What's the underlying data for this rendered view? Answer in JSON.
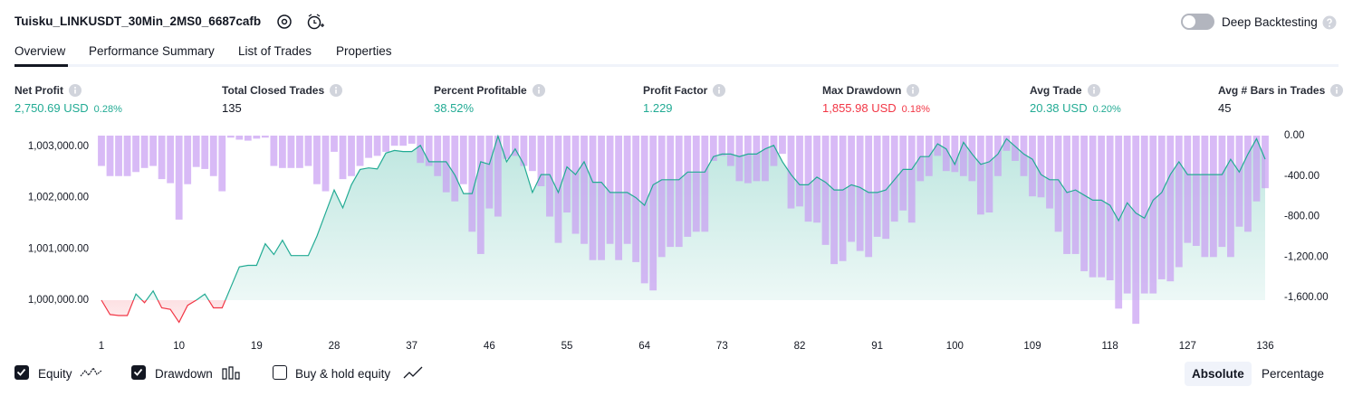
{
  "header": {
    "title": "Tuisku_LINKUSDT_30Min_2MS0_6687cafb",
    "deep_backtesting": "Deep Backtesting"
  },
  "tabs": [
    "Overview",
    "Performance Summary",
    "List of Trades",
    "Properties"
  ],
  "metrics": [
    {
      "label": "Net Profit",
      "value": "2,750.69 USD",
      "percent": "0.28%",
      "color": "#22ab94"
    },
    {
      "label": "Total Closed Trades",
      "value": "135",
      "color": "#131722"
    },
    {
      "label": "Percent Profitable",
      "value": "38.52%",
      "color": "#22ab94"
    },
    {
      "label": "Profit Factor",
      "value": "1.229",
      "color": "#22ab94"
    },
    {
      "label": "Max Drawdown",
      "value": "1,855.98 USD",
      "percent": "0.18%",
      "color": "#f23645"
    },
    {
      "label": "Avg Trade",
      "value": "20.38 USD",
      "percent": "0.20%",
      "color": "#22ab94"
    },
    {
      "label": "Avg # Bars in Trades",
      "value": "45",
      "color": "#131722"
    }
  ],
  "chart_data": {
    "type": "combo",
    "x": [
      1,
      2,
      3,
      4,
      5,
      6,
      7,
      8,
      9,
      10,
      11,
      12,
      13,
      14,
      15,
      16,
      17,
      18,
      19,
      20,
      21,
      22,
      23,
      24,
      25,
      26,
      27,
      28,
      29,
      30,
      31,
      32,
      33,
      34,
      35,
      36,
      37,
      38,
      39,
      40,
      41,
      42,
      43,
      44,
      45,
      46,
      47,
      48,
      49,
      50,
      51,
      52,
      53,
      54,
      55,
      56,
      57,
      58,
      59,
      60,
      61,
      62,
      63,
      64,
      65,
      66,
      67,
      68,
      69,
      70,
      71,
      72,
      73,
      74,
      75,
      76,
      77,
      78,
      79,
      80,
      81,
      82,
      83,
      84,
      85,
      86,
      87,
      88,
      89,
      90,
      91,
      92,
      93,
      94,
      95,
      96,
      97,
      98,
      99,
      100,
      101,
      102,
      103,
      104,
      105,
      106,
      107,
      108,
      109,
      110,
      111,
      112,
      113,
      114,
      115,
      116,
      117,
      118,
      119,
      120,
      121,
      122,
      123,
      124,
      125,
      126,
      127,
      128,
      129,
      130,
      131,
      132,
      133,
      134,
      135,
      136
    ],
    "xlim": [
      1,
      136
    ],
    "xticks": [
      1,
      10,
      19,
      28,
      37,
      46,
      55,
      64,
      73,
      82,
      91,
      100,
      109,
      118,
      127,
      136
    ],
    "ylim": [
      999330,
      1003210
    ],
    "yticks": [
      {
        "value": 1000000,
        "label": "1,000,000.00"
      },
      {
        "value": 1001000,
        "label": "1,001,000.00"
      },
      {
        "value": 1002000,
        "label": "1,002,000.00"
      },
      {
        "value": 1003000,
        "label": "1,003,000.00"
      }
    ],
    "y2lim": [
      -1966,
      0
    ],
    "y2ticks": [
      {
        "value": 0,
        "label": "0.00"
      },
      {
        "value": -400,
        "label": "-400.00"
      },
      {
        "value": -800,
        "label": "-800.00"
      },
      {
        "value": -1200,
        "label": "-1,200.00"
      },
      {
        "value": -1600,
        "label": "-1,600.00"
      }
    ],
    "baseline": 1000000,
    "series": [
      {
        "name": "Equity",
        "checked": true,
        "color": "#22ab94",
        "negative_color": "#f23645",
        "values": [
          1000000,
          999720,
          999700,
          999700,
          1000120,
          999950,
          1000180,
          999850,
          999820,
          999570,
          999900,
          1000000,
          1000120,
          999850,
          999850,
          1000250,
          1000650,
          1000680,
          1000680,
          1001100,
          1000890,
          1001170,
          1000870,
          1000870,
          1000870,
          1001250,
          1001700,
          1002150,
          1001800,
          1002250,
          1002550,
          1002580,
          1002560,
          1002870,
          1002920,
          1002900,
          1002900,
          1003020,
          1002700,
          1002700,
          1002700,
          1002440,
          1002080,
          1002080,
          1002700,
          1002650,
          1003200,
          1002700,
          1002950,
          1002650,
          1002100,
          1002450,
          1002450,
          1002100,
          1002600,
          1002450,
          1002700,
          1002300,
          1002300,
          1002100,
          1002100,
          1002100,
          1002000,
          1001850,
          1002250,
          1002350,
          1002350,
          1002350,
          1002500,
          1002500,
          1002500,
          1002800,
          1002850,
          1002850,
          1002800,
          1002850,
          1002850,
          1002950,
          1003020,
          1002700,
          1002450,
          1002250,
          1002250,
          1002400,
          1002300,
          1002150,
          1002150,
          1002250,
          1002200,
          1002100,
          1002100,
          1002150,
          1002350,
          1002550,
          1002550,
          1002800,
          1002800,
          1003050,
          1002950,
          1002650,
          1003080,
          1002850,
          1002650,
          1002700,
          1002850,
          1003150,
          1003000,
          1002850,
          1002750,
          1002450,
          1002350,
          1002350,
          1002100,
          1002150,
          1002050,
          1001950,
          1001950,
          1001850,
          1001550,
          1001900,
          1001700,
          1001600,
          1001950,
          1002100,
          1002450,
          1002700,
          1002450,
          1002450,
          1002450,
          1002450,
          1002450,
          1002750,
          1002500,
          1002850,
          1003150,
          1002750
        ]
      },
      {
        "name": "Drawdown",
        "checked": true,
        "color": "#c79cf2",
        "axis": "y2",
        "values": [
          -300,
          -400,
          -400,
          -400,
          -360,
          -320,
          -300,
          -430,
          -470,
          -830,
          -480,
          -310,
          -330,
          -400,
          -550,
          -20,
          -40,
          -50,
          -30,
          -20,
          -300,
          -320,
          -320,
          -320,
          -300,
          -480,
          -550,
          -160,
          -430,
          -400,
          -300,
          -220,
          -200,
          -160,
          -100,
          -100,
          -80,
          -270,
          -300,
          -400,
          -560,
          -650,
          -480,
          -950,
          -1170,
          -720,
          -800,
          -230,
          -200,
          -300,
          -350,
          -500,
          -800,
          -1060,
          -760,
          -970,
          -1070,
          -1230,
          -1230,
          -1070,
          -1230,
          -1070,
          -1250,
          -1460,
          -1530,
          -1200,
          -1100,
          -1100,
          -1000,
          -950,
          -950,
          -250,
          -200,
          -300,
          -450,
          -470,
          -450,
          -450,
          -300,
          -180,
          -720,
          -700,
          -850,
          -860,
          -1080,
          -1270,
          -1240,
          -1050,
          -1140,
          -1200,
          -1000,
          -1020,
          -850,
          -740,
          -860,
          -450,
          -400,
          -200,
          -350,
          -360,
          -400,
          -450,
          -780,
          -760,
          -400,
          -150,
          -250,
          -400,
          -600,
          -610,
          -720,
          -950,
          -1170,
          -1170,
          -1340,
          -1400,
          -1400,
          -1430,
          -1710,
          -1560,
          -1860,
          -1560,
          -1560,
          -1420,
          -1440,
          -1300,
          -1060,
          -1090,
          -1200,
          -1200,
          -1100,
          -1200,
          -900,
          -950,
          -650,
          -520
        ]
      }
    ]
  },
  "footer": {
    "extra_toggle": "Buy & hold equity",
    "modes": [
      "Absolute",
      "Percentage"
    ],
    "active_mode_index": 0
  }
}
